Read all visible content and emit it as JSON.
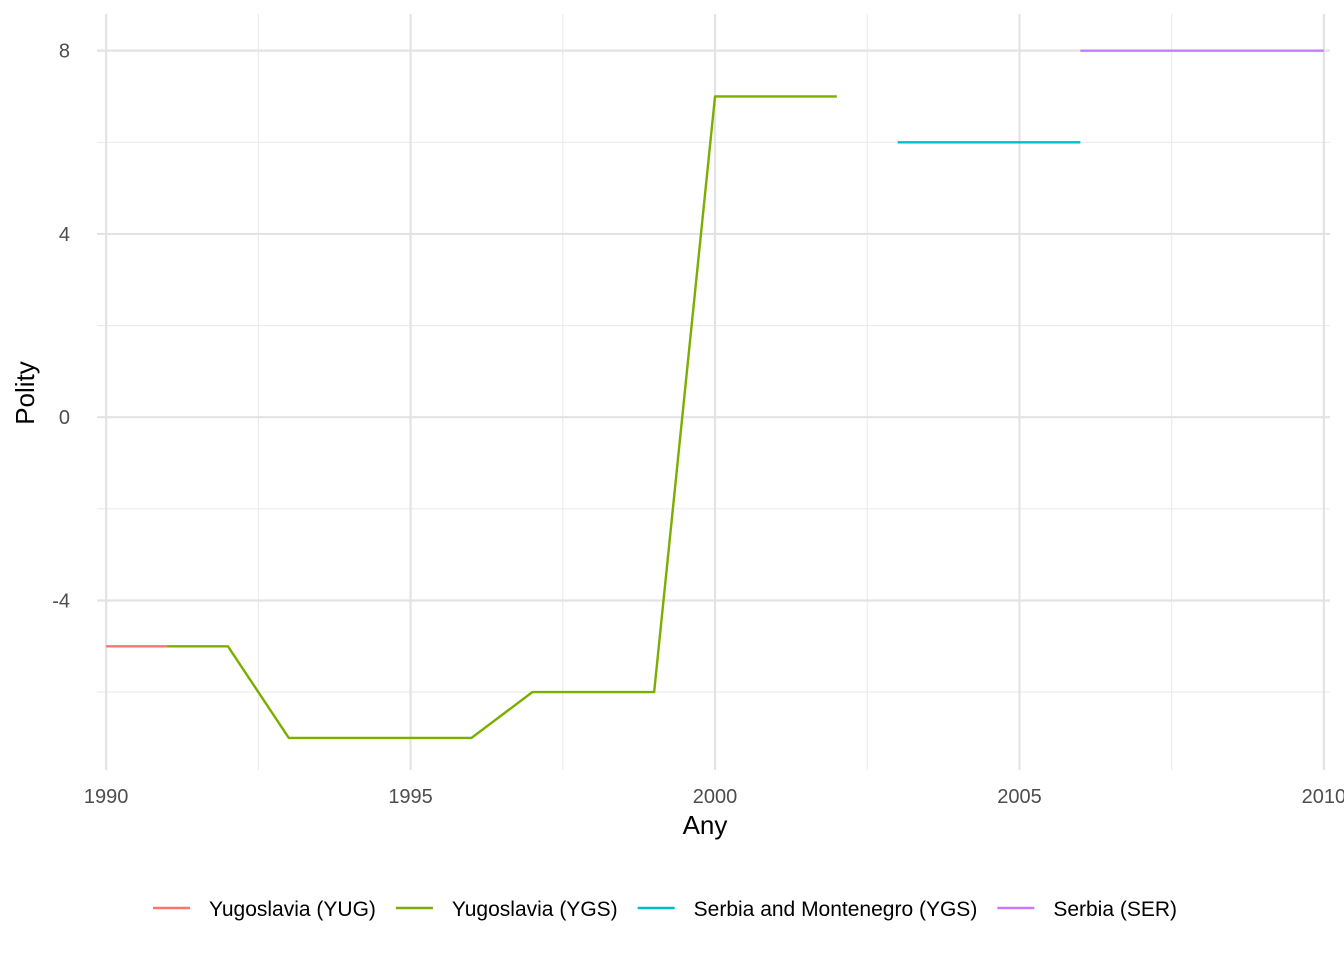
{
  "chart_data": {
    "type": "line",
    "xlabel": "Any",
    "ylabel": "Polity",
    "xlim": [
      1989.85,
      2010.1
    ],
    "ylim": [
      -7.7,
      8.8
    ],
    "x_ticks": [
      1990,
      1995,
      2000,
      2005,
      2010
    ],
    "x_tick_labels": [
      "1990",
      "1995",
      "2000",
      "2005",
      "2010"
    ],
    "y_ticks": [
      -4,
      0,
      4,
      8
    ],
    "y_tick_labels": [
      "-4",
      "0",
      "4",
      "8"
    ],
    "x_minor_ticks": [
      1992.5,
      1997.5,
      2002.5,
      2007.5
    ],
    "y_minor_ticks": [
      -6,
      -2,
      2,
      6
    ],
    "grid": true,
    "legend_position": "bottom",
    "series": [
      {
        "name": "Yugoslavia (YUG)",
        "color": "#F8766D",
        "x": [
          1990,
          1991
        ],
        "y": [
          -5,
          -5
        ]
      },
      {
        "name": "Yugoslavia (YGS)",
        "color": "#7CAE00",
        "x": [
          1991,
          1992,
          1993,
          1994,
          1995,
          1996,
          1997,
          1998,
          1999,
          2000,
          2001,
          2002
        ],
        "y": [
          -5,
          -5,
          -7,
          -7,
          -7,
          -7,
          -6,
          -6,
          -6,
          7,
          7,
          7
        ]
      },
      {
        "name": "Serbia and Montenegro (YGS)",
        "color": "#00BFC4",
        "x": [
          2003,
          2004,
          2005,
          2006
        ],
        "y": [
          6,
          6,
          6,
          6
        ]
      },
      {
        "name": "Serbia (SER)",
        "color": "#C77CFF",
        "x": [
          2006,
          2007,
          2008,
          2009,
          2010
        ],
        "y": [
          8,
          8,
          8,
          8,
          8
        ]
      }
    ]
  }
}
